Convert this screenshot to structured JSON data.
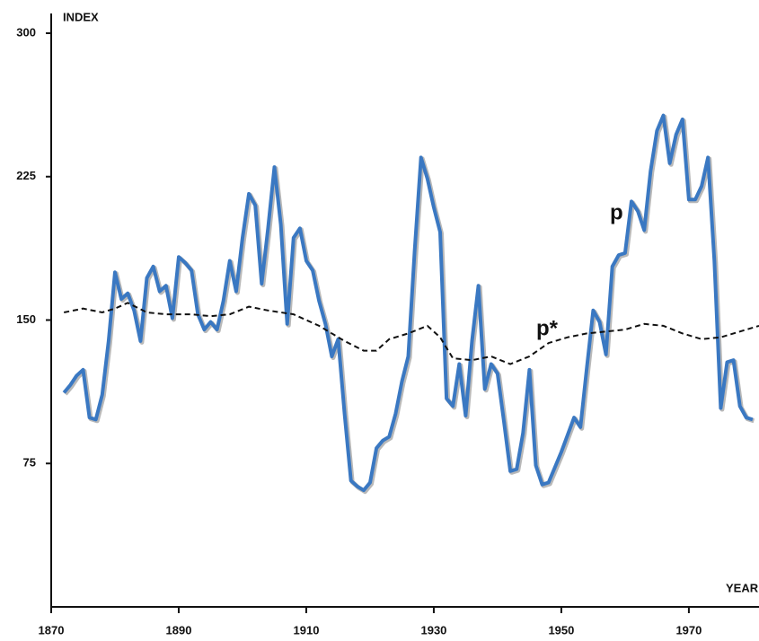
{
  "chart_data": {
    "type": "line",
    "y_label": "INDEX",
    "x_label": "YEAR",
    "xlim": [
      1870,
      1981
    ],
    "ylim": [
      0,
      300
    ],
    "xticks": [
      1870,
      1890,
      1910,
      1930,
      1950,
      1970
    ],
    "yticks": [
      75,
      150,
      225,
      300
    ],
    "series": [
      {
        "name": "p",
        "color": "#3a78c2",
        "style": "solid",
        "x": [
          1872,
          1873,
          1874,
          1875,
          1876,
          1877,
          1878,
          1879,
          1880,
          1881,
          1882,
          1883,
          1884,
          1885,
          1886,
          1887,
          1888,
          1889,
          1890,
          1891,
          1892,
          1893,
          1894,
          1895,
          1896,
          1897,
          1898,
          1899,
          1900,
          1901,
          1902,
          1903,
          1904,
          1905,
          1906,
          1907,
          1908,
          1909,
          1910,
          1911,
          1912,
          1913,
          1914,
          1915,
          1916,
          1917,
          1918,
          1919,
          1920,
          1921,
          1922,
          1923,
          1924,
          1925,
          1926,
          1927,
          1928,
          1929,
          1930,
          1931,
          1932,
          1933,
          1934,
          1935,
          1936,
          1937,
          1938,
          1939,
          1940,
          1941,
          1942,
          1943,
          1944,
          1945,
          1946,
          1947,
          1948,
          1949,
          1950,
          1951,
          1952,
          1953,
          1954,
          1955,
          1956,
          1957,
          1958,
          1959,
          1960,
          1961,
          1962,
          1963,
          1964,
          1965,
          1966,
          1967,
          1968,
          1969,
          1970,
          1971,
          1972,
          1973,
          1974,
          1975,
          1976,
          1977,
          1978,
          1979,
          1980
        ],
        "values": [
          112,
          116,
          121,
          124,
          99,
          98,
          111,
          139,
          175,
          161,
          164,
          155,
          139,
          172,
          178,
          165,
          168,
          151,
          183,
          180,
          176,
          153,
          145,
          149,
          145,
          160,
          181,
          165,
          193,
          216,
          210,
          169,
          198,
          230,
          200,
          148,
          193,
          198,
          181,
          176,
          160,
          148,
          131,
          140,
          101,
          66,
          63,
          61,
          65,
          83,
          87,
          89,
          101,
          118,
          131,
          186,
          235,
          224,
          209,
          196,
          109,
          105,
          127,
          100,
          139,
          168,
          114,
          127,
          122,
          97,
          71,
          72,
          91,
          124,
          74,
          64,
          65,
          73,
          81,
          90,
          99,
          94,
          125,
          155,
          149,
          132,
          178,
          184,
          185,
          212,
          207,
          197,
          228,
          249,
          257,
          232,
          247,
          255,
          213,
          213,
          220,
          235,
          181,
          104,
          128,
          129,
          105,
          99,
          98
        ]
      },
      {
        "name": "p*",
        "color": "#111111",
        "style": "dashed",
        "x": [
          1872,
          1875,
          1878,
          1880,
          1882,
          1885,
          1888,
          1892,
          1895,
          1898,
          1901,
          1904,
          1908,
          1912,
          1916,
          1919,
          1921,
          1923,
          1926,
          1929,
          1931,
          1933,
          1936,
          1939,
          1942,
          1945,
          1948,
          1951,
          1954,
          1957,
          1960,
          1963,
          1966,
          1969,
          1972,
          1975,
          1978,
          1981
        ],
        "values": [
          154,
          156,
          154,
          156,
          159,
          154,
          153,
          153,
          152,
          153,
          157,
          155,
          153,
          147,
          139,
          134,
          134,
          140,
          143,
          147,
          141,
          130,
          129,
          131,
          127,
          131,
          138,
          141,
          143,
          144,
          145,
          148,
          147,
          143,
          140,
          141,
          144,
          147
        ]
      }
    ]
  }
}
